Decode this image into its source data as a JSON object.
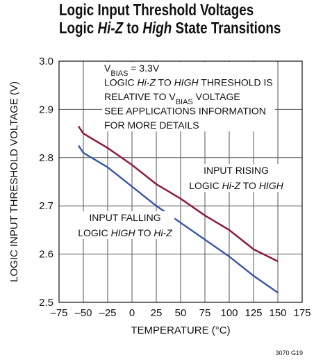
{
  "chart_data": {
    "type": "line",
    "title": [
      [
        {
          "text": "Logic Input Threshold Voltages"
        }
      ],
      [
        {
          "text": "Logic "
        },
        {
          "text": "Hi-Z",
          "italic": true
        },
        {
          "text": " to "
        },
        {
          "text": "High",
          "italic": true
        },
        {
          "text": " State Transitions"
        }
      ]
    ],
    "x_label": "TEMPERATURE (°C)",
    "y_label": "LOGIC INPUT THRESHOLD VOLTAGE (V)",
    "footnote": "3070 G19",
    "x": [
      -55,
      -50,
      -25,
      0,
      25,
      50,
      75,
      100,
      125,
      150
    ],
    "series": [
      {
        "color": "#8c1c3c",
        "values": [
          2.865,
          2.85,
          2.82,
          2.785,
          2.745,
          2.715,
          2.68,
          2.65,
          2.61,
          2.585
        ]
      },
      {
        "color": "#3c5aa8",
        "values": [
          2.825,
          2.81,
          2.78,
          2.74,
          2.7,
          2.665,
          2.63,
          2.595,
          2.555,
          2.52
        ]
      }
    ],
    "annotations": [
      {
        "lines": [
          [
            {
              "text": "V"
            },
            {
              "text": "BIAS",
              "sub": true
            },
            {
              "text": " = 3.3V"
            }
          ],
          [
            {
              "text": "LOGIC "
            },
            {
              "text": "Hi-Z",
              "italic": true
            },
            {
              "text": " TO "
            },
            {
              "text": "HIGH",
              "italic": true
            },
            {
              "text": " THRESHOLD IS"
            }
          ],
          [
            {
              "text": "RELATIVE TO V"
            },
            {
              "text": "BIAS",
              "sub": true
            },
            {
              "text": " VOLTAGE"
            }
          ],
          [
            {
              "text": "SEE APPLICATIONS INFORMATION"
            }
          ],
          [
            {
              "text": "FOR MORE DETAILS"
            }
          ]
        ]
      },
      {
        "lines": [
          [
            {
              "text": "INPUT RISING"
            }
          ],
          [
            {
              "text": "LOGIC "
            },
            {
              "text": "Hi-Z",
              "italic": true
            },
            {
              "text": " TO "
            },
            {
              "text": "HIGH",
              "italic": true
            }
          ]
        ]
      },
      {
        "lines": [
          [
            {
              "text": "INPUT FALLING"
            }
          ],
          [
            {
              "text": "LOGIC "
            },
            {
              "text": "HIGH",
              "italic": true
            },
            {
              "text": " TO "
            },
            {
              "text": "Hi-Z",
              "italic": true
            }
          ]
        ]
      }
    ],
    "xlim": [
      -75,
      175
    ],
    "xticks": [
      {
        "value": -75,
        "label": "–75"
      },
      {
        "value": -50,
        "label": "–50"
      },
      {
        "value": -25,
        "label": "–25"
      },
      0,
      25,
      50,
      75,
      100,
      125,
      150,
      175
    ],
    "ylim": [
      2.5,
      3.0
    ],
    "yticks": [
      2.5,
      2.6,
      2.7,
      2.8,
      2.9,
      {
        "value": 3.0,
        "label": "3.0"
      }
    ],
    "grid": true
  }
}
